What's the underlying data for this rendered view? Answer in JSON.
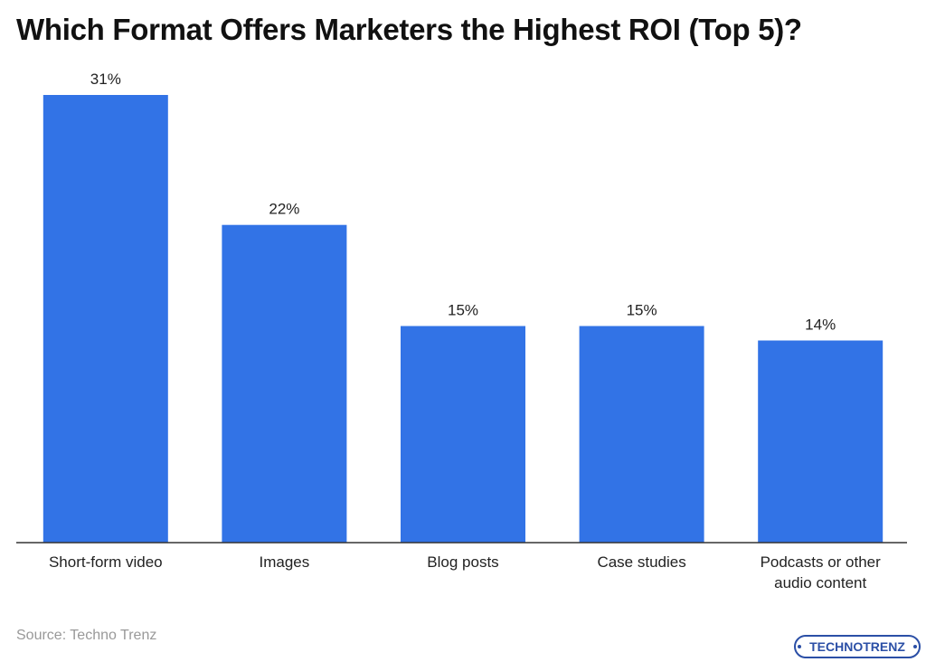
{
  "title": "Which Format Offers Marketers the Highest ROI (Top 5)?",
  "source": "Source: Techno Trenz",
  "logo": {
    "text": "TECHNOTRENZ"
  },
  "colors": {
    "bar": "#3273e6",
    "axis": "#333333",
    "logo": "#2b4fa6"
  },
  "chart_data": {
    "type": "bar",
    "title": "Which Format Offers Marketers the Highest ROI (Top 5)?",
    "xlabel": "",
    "ylabel": "",
    "categories": [
      [
        "Short-form video"
      ],
      [
        "Images"
      ],
      [
        "Blog posts"
      ],
      [
        "Case studies"
      ],
      [
        "Podcasts or other",
        "audio content"
      ]
    ],
    "values": [
      31,
      22,
      15,
      15,
      14
    ],
    "value_labels": [
      "31%",
      "22%",
      "15%",
      "15%",
      "14%"
    ],
    "ylim": [
      0,
      31
    ],
    "grid": false
  }
}
